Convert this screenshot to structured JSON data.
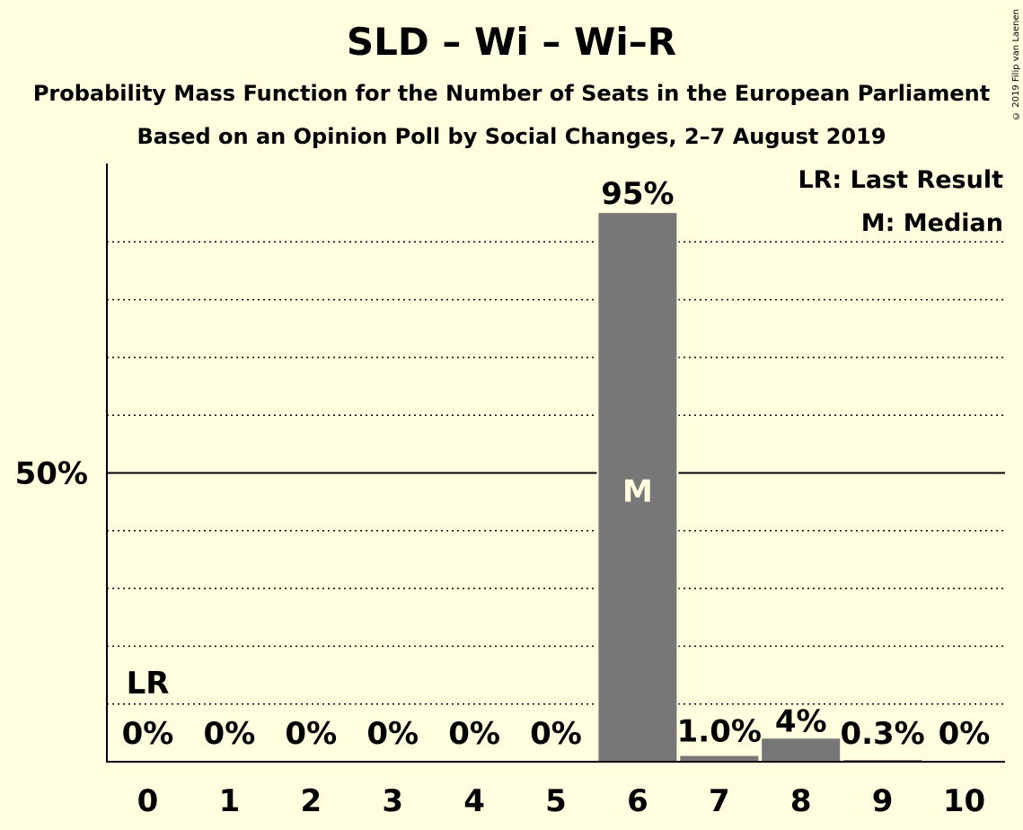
{
  "title": "SLD – Wi – Wi–R",
  "subtitle1": "Probability Mass Function for the Number of Seats in the European Parliament",
  "subtitle2": "Based on an Opinion Poll by Social Changes, 2–7 August 2019",
  "copyright": "© 2019 Filip van Laenen",
  "legend": {
    "last_result": "LR: Last Result",
    "median": "M: Median"
  },
  "colors": {
    "background": "#ffffe0",
    "bar": "#777777",
    "median_text": "#ffffe0"
  },
  "chart_data": {
    "type": "bar",
    "categories": [
      "0",
      "1",
      "2",
      "3",
      "4",
      "5",
      "6",
      "7",
      "8",
      "9",
      "10"
    ],
    "values": [
      0,
      0,
      0,
      0,
      0,
      0,
      95,
      1.0,
      4,
      0.3,
      0
    ],
    "value_labels": [
      "0%",
      "0%",
      "0%",
      "0%",
      "0%",
      "0%",
      "95%",
      "1.0%",
      "4%",
      "0.3%",
      "0%"
    ],
    "ylim": [
      0,
      100
    ],
    "y_tick_labels": [
      {
        "value": 50,
        "label": "50%"
      }
    ],
    "gridlines": [
      10,
      20,
      30,
      40,
      50,
      60,
      70,
      80,
      90
    ],
    "last_result": {
      "category": "0",
      "label": "LR"
    },
    "median": {
      "category": "6",
      "label": "M"
    },
    "grid": true,
    "legend_position": "top-right"
  }
}
